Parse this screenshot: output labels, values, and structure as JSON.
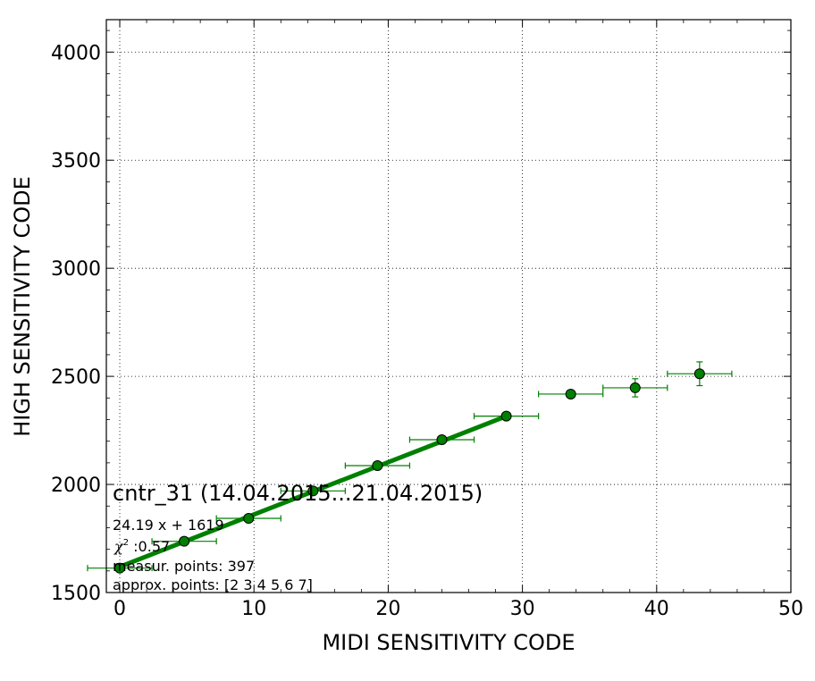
{
  "chart_data": {
    "type": "scatter",
    "xlabel": "MIDI SENSITIVITY CODE",
    "ylabel": "HIGH SENSITIVITY CODE",
    "xlim": [
      -1,
      50
    ],
    "ylim": [
      1500,
      4150
    ],
    "xticks": [
      0,
      10,
      20,
      30,
      40,
      50
    ],
    "yticks": [
      1500,
      2000,
      2500,
      3000,
      3500,
      4000
    ],
    "grid": true,
    "annotations": {
      "title": "cntr_31 (14.04.2015...21.04.2015)",
      "fit": "24.19 x + 1619",
      "chi2_symbol": "χ",
      "chi2_sup": "2",
      "chi2_value": " :0.57",
      "measur": "measur. points: 397",
      "approx": "approx. points: [2 3 4 5 6 7]"
    },
    "color": "#008000",
    "points": [
      {
        "x": 0.0,
        "y": 1613,
        "xerr": 2.4,
        "yerr": 0
      },
      {
        "x": 4.8,
        "y": 1737,
        "xerr": 2.4,
        "yerr": 0
      },
      {
        "x": 9.6,
        "y": 1843,
        "xerr": 2.4,
        "yerr": 0
      },
      {
        "x": 14.4,
        "y": 1970,
        "xerr": 2.4,
        "yerr": 0
      },
      {
        "x": 19.2,
        "y": 2087,
        "xerr": 2.4,
        "yerr": 0
      },
      {
        "x": 24.0,
        "y": 2207,
        "xerr": 2.4,
        "yerr": 0
      },
      {
        "x": 28.8,
        "y": 2316,
        "xerr": 2.4,
        "yerr": 0
      },
      {
        "x": 33.6,
        "y": 2418,
        "xerr": 2.4,
        "yerr": 15
      },
      {
        "x": 38.4,
        "y": 2447,
        "xerr": 2.4,
        "yerr": 42
      },
      {
        "x": 43.2,
        "y": 2512,
        "xerr": 2.4,
        "yerr": 55
      }
    ],
    "fit_line": {
      "x": [
        0,
        28.8
      ],
      "slope": 24.19,
      "intercept": 1619
    }
  }
}
